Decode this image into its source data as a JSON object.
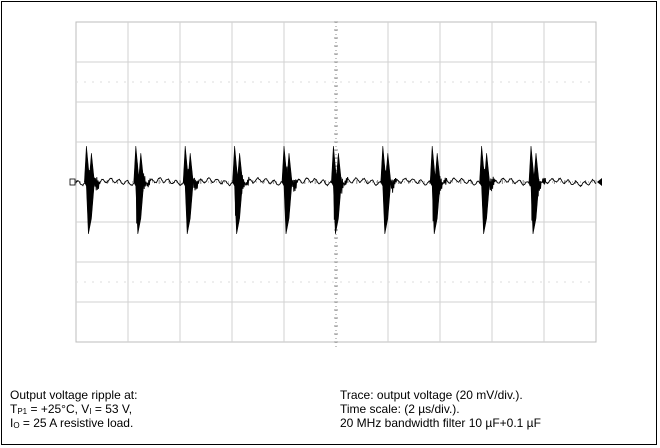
{
  "chart_data": {
    "type": "line",
    "title": "",
    "grid": true,
    "divisions": {
      "x": 10,
      "y": 8
    },
    "volts_per_div_mV": 20,
    "time_per_div_us": 2,
    "series": [
      {
        "spike_times_div": [
          0.2,
          1.15,
          2.1,
          3.05,
          4.0,
          4.95,
          5.9,
          6.85,
          7.8,
          8.75
        ],
        "spike_amplitude_div": {
          "up": 0.9,
          "down": -1.3
        }
      }
    ]
  },
  "caption_left": {
    "line1": "Output voltage ripple  at:",
    "line2_a": "T",
    "line2_sub1": "P1",
    "line2_b": " = +25°C, V",
    "line2_sub2": "I",
    "line2_c": " = 53 V,",
    "line3_a": "I",
    "line3_sub": "O",
    "line3_b": " = 25 A resistive load."
  },
  "caption_right": {
    "line1": "Trace: output voltage (20 mV/div.).",
    "line2": "Time scale: (2 µs/div.).",
    "line3": "20 MHz bandwidth filter 10 µF+0.1 µF"
  }
}
